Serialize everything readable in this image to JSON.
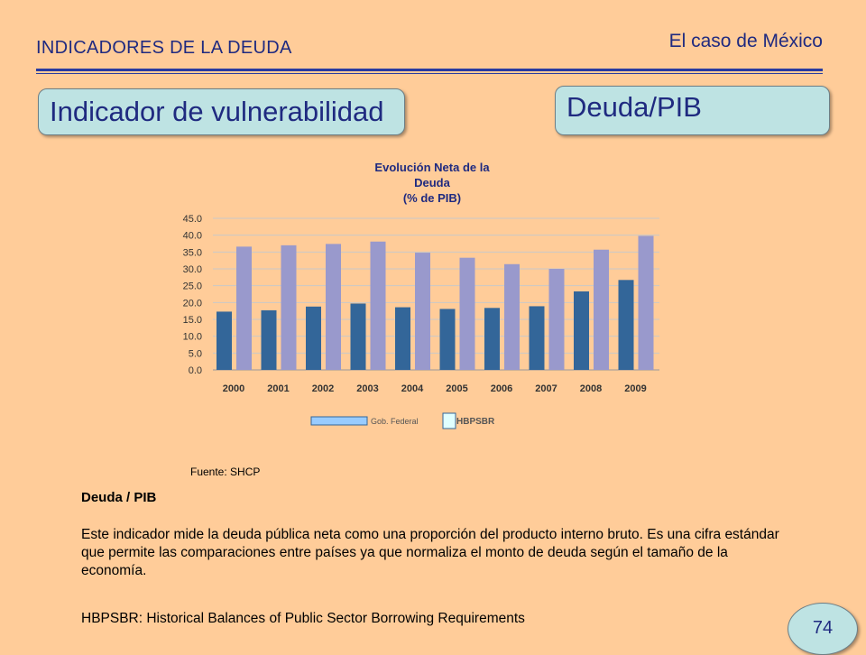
{
  "header": {
    "section_title": "INDICADORES DE LA DEUDA",
    "case_label": "El caso de México"
  },
  "boxes": {
    "left_title": "Indicador de vulnerabilidad",
    "right_title": "Deuda/PIB"
  },
  "chart_data": {
    "type": "bar",
    "title_lines": [
      "Evolución Neta de la",
      "Deuda",
      "(% de PIB)"
    ],
    "categories": [
      "2000",
      "2001",
      "2002",
      "2003",
      "2004",
      "2005",
      "2006",
      "2007",
      "2008",
      "2009"
    ],
    "series": [
      {
        "name": "Gob. Federal",
        "color": "#336699",
        "values": [
          17.3,
          17.7,
          18.8,
          19.7,
          18.6,
          18.1,
          18.4,
          18.9,
          23.3,
          26.7
        ]
      },
      {
        "name": "HBPSBR",
        "color": "#9999CC",
        "values": [
          36.6,
          37.0,
          37.4,
          38.1,
          34.8,
          33.3,
          31.4,
          30.0,
          35.7,
          39.8
        ]
      }
    ],
    "y_ticks": [
      "45.0",
      "40.0",
      "35.0",
      "30.0",
      "25.0",
      "20.0",
      "15.0",
      "10.0",
      "5.0",
      "0.0"
    ],
    "ylim": [
      0,
      45
    ],
    "grid": true,
    "legend_position": "bottom"
  },
  "source": "Fuente: SHCP",
  "description": {
    "title": "Deuda / PIB",
    "body": "Este indicador mide la deuda pública neta como una proporción del producto interno bruto. Es una cifra estándar que permite las comparaciones entre países ya que normaliza el monto de deuda según el tamaño de la economía.",
    "note": "HBPSBR: Historical Balances of Public Sector Borrowing Requirements"
  },
  "page_number": "74"
}
